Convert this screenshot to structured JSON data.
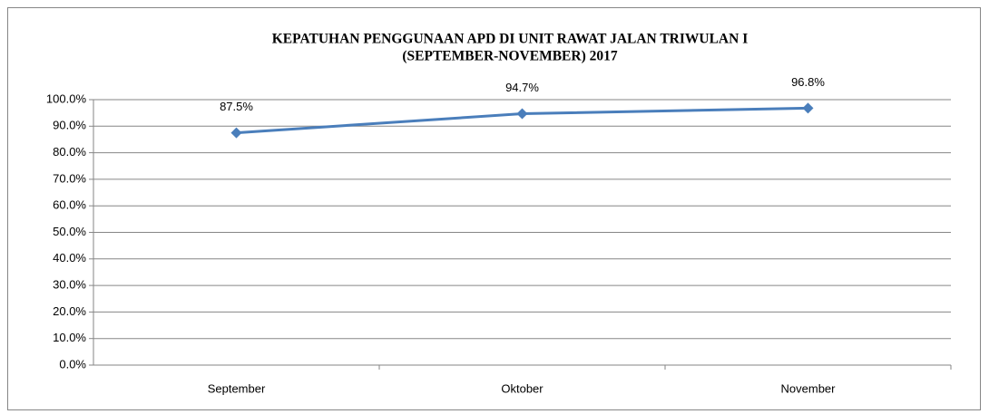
{
  "chart_data": {
    "type": "line",
    "title": [
      "KEPATUHAN PENGGUNAAN APD DI UNIT RAWAT JALAN TRIWULAN I",
      "(SEPTEMBER-NOVEMBER) 2017"
    ],
    "categories": [
      "September",
      "Oktober",
      "November"
    ],
    "values": [
      87.5,
      94.7,
      96.8
    ],
    "value_labels": [
      "87.5%",
      "94.7%",
      "96.8%"
    ],
    "color": "#4a7ebb",
    "ylim": [
      0,
      100
    ],
    "yticks": [
      {
        "value": 0,
        "label": "0.0%"
      },
      {
        "value": 10,
        "label": "10.0%"
      },
      {
        "value": 20,
        "label": "20.0%"
      },
      {
        "value": 30,
        "label": "30.0%"
      },
      {
        "value": 40,
        "label": "40.0%"
      },
      {
        "value": 50,
        "label": "50.0%"
      },
      {
        "value": 60,
        "label": "60.0%"
      },
      {
        "value": 70,
        "label": "70.0%"
      },
      {
        "value": 80,
        "label": "80.0%"
      },
      {
        "value": 90,
        "label": "90.0%"
      },
      {
        "value": 100,
        "label": "100.0%"
      }
    ],
    "grid": true
  }
}
